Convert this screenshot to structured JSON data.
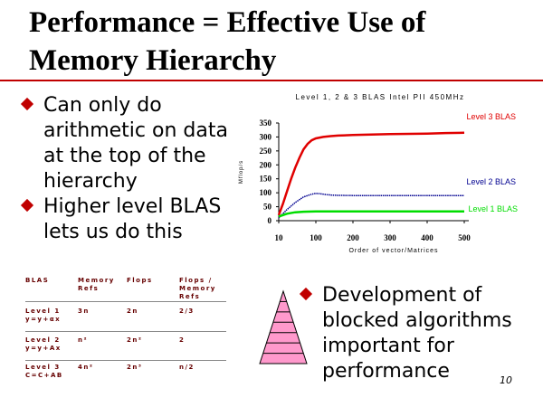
{
  "slide": {
    "title_line1": "Performance = Effective Use of",
    "title_line2": "Memory Hierarchy",
    "bullets_left": [
      {
        "lines": [
          "Can only do",
          "arithmetic on data",
          "at the top of the",
          "hierarchy"
        ]
      },
      {
        "lines": [
          "Higher level BLAS",
          "lets us do this"
        ]
      }
    ],
    "bullet_right": {
      "lines": [
        "Development of",
        "blocked algorithms",
        "important for",
        "performance"
      ]
    },
    "page_number": "10",
    "accent_color": "#c00000"
  },
  "table": {
    "headers": [
      [
        "BLAS"
      ],
      [
        "Memory",
        "Refs"
      ],
      [
        "Flops"
      ],
      [
        "Flops /",
        "Memory",
        "Refs"
      ]
    ],
    "rows": [
      {
        "blas": [
          "Level 1",
          "y=y+αx"
        ],
        "refs": "3n",
        "flops": "2n",
        "ratio": "2/3"
      },
      {
        "blas": [
          "Level 2",
          "y=y+Ax"
        ],
        "refs": "n²",
        "flops": "2n²",
        "ratio": "2"
      },
      {
        "blas": [
          "Level 3",
          "C=C+AB"
        ],
        "refs": "4n²",
        "flops": "2n³",
        "ratio": "n/2"
      }
    ]
  },
  "chart_data": {
    "type": "line",
    "title": "Level 1, 2 & 3 BLAS Intel PII 450MHz",
    "xlabel": "Order of vector/Matrices",
    "ylabel": "Mflop/s",
    "x_ticks": [
      10,
      100,
      200,
      300,
      400,
      500
    ],
    "y_ticks": [
      0,
      50,
      100,
      150,
      200,
      250,
      300,
      350
    ],
    "xlim": [
      10,
      500
    ],
    "ylim": [
      0,
      350
    ],
    "grid": false,
    "series": [
      {
        "name": "Level 3 BLAS",
        "color": "#e00000",
        "x": [
          10,
          20,
          30,
          40,
          50,
          60,
          70,
          80,
          90,
          100,
          120,
          140,
          160,
          200,
          250,
          300,
          350,
          400,
          450,
          500
        ],
        "values": [
          20,
          60,
          105,
          150,
          190,
          225,
          255,
          275,
          288,
          295,
          300,
          303,
          305,
          307,
          309,
          310,
          311,
          312,
          314,
          315
        ]
      },
      {
        "name": "Level 2 BLAS",
        "color": "#000090",
        "x": [
          10,
          30,
          50,
          70,
          90,
          100,
          110,
          130,
          150,
          200,
          250,
          300,
          350,
          400,
          450,
          500
        ],
        "values": [
          10,
          40,
          65,
          85,
          95,
          98,
          97,
          93,
          91,
          90,
          90,
          90,
          90,
          90,
          90,
          90
        ]
      },
      {
        "name": "Level 1 BLAS",
        "color": "#00dd00",
        "x": [
          10,
          30,
          50,
          70,
          100,
          150,
          200,
          300,
          400,
          500
        ],
        "values": [
          15,
          25,
          30,
          32,
          33,
          33,
          33,
          33,
          33,
          33
        ]
      }
    ]
  }
}
